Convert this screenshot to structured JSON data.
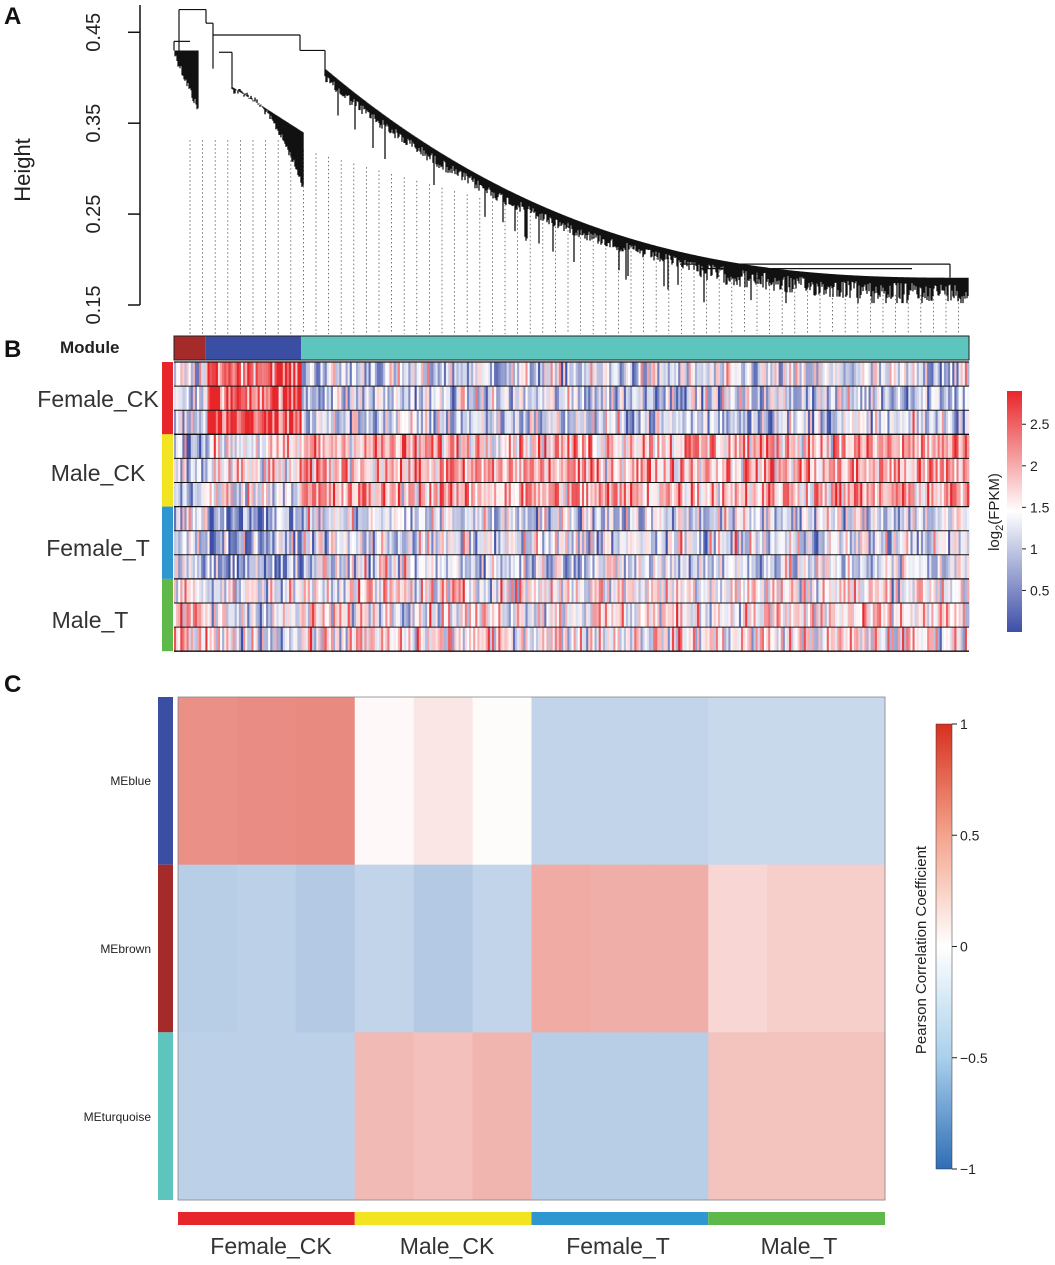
{
  "panels": {
    "a": "A",
    "b": "B",
    "c": "C"
  },
  "colors": {
    "brown": "#a52a2a",
    "blue": "#3a4fa3",
    "turquoise": "#5ec4be",
    "female_ck": "#e6262a",
    "male_ck": "#f2e421",
    "female_t": "#2e97cf",
    "male_t": "#5fb84a",
    "heat_low": "#3d4fa7",
    "heat_mid": "#ffffff",
    "heat_high": "#e8262a",
    "corr_low": "#2f6db5",
    "corr_high": "#d7301f"
  },
  "chart_data": [
    {
      "type": "dendrogram",
      "panel": "A",
      "ylabel": "Height",
      "ylim": [
        0.15,
        0.48
      ],
      "yticks": [
        "0.15",
        "0.25",
        "0.35",
        "0.45"
      ],
      "ytick_values": [
        0.15,
        0.25,
        0.35,
        0.45
      ],
      "module_label": "Module",
      "modules": [
        {
          "name": "brown",
          "color": "#a52a2a",
          "fraction": 0.04
        },
        {
          "name": "blue",
          "color": "#3a4fa3",
          "fraction": 0.12
        },
        {
          "name": "turquoise",
          "color": "#5ec4be",
          "fraction": 0.84
        }
      ]
    },
    {
      "type": "heatmap",
      "panel": "B",
      "groups": [
        "Female_CK",
        "Male_CK",
        "Female_T",
        "Male_T"
      ],
      "group_colors": [
        "#e6262a",
        "#f2e421",
        "#2e97cf",
        "#5fb84a"
      ],
      "replicates_per_group": 3,
      "colorbar_title": "log2(FPKM)",
      "colorbar_title_main": "log",
      "colorbar_title_sub": "2",
      "colorbar_title_rest": "(FPKM)",
      "colorbar_ticks": [
        "0.5",
        "1",
        "1.5",
        "2",
        "2.5"
      ],
      "colorbar_tick_values": [
        0.5,
        1.0,
        1.5,
        2.0,
        2.5
      ],
      "colorbar_range": [
        0.0,
        2.9
      ],
      "module_mean_levels": {
        "Female_CK": {
          "brown": 1.2,
          "blue": 2.6,
          "turquoise": 1.1
        },
        "Male_CK": {
          "brown": 1.0,
          "blue": 1.5,
          "turquoise": 2.0
        },
        "Female_T": {
          "brown": 1.1,
          "blue": 0.8,
          "turquoise": 1.2
        },
        "Male_T": {
          "brown": 1.7,
          "blue": 1.3,
          "turquoise": 1.6
        }
      }
    },
    {
      "type": "heatmap",
      "panel": "C",
      "rows": [
        "MEblue",
        "MEbrown",
        "MEturquoise"
      ],
      "row_colors": [
        "#3a4fa3",
        "#a52a2a",
        "#5ec4be"
      ],
      "groups": [
        "Female_CK",
        "Male_CK",
        "Female_T",
        "Male_T"
      ],
      "group_colors": [
        "#e6262a",
        "#f2e421",
        "#2e97cf",
        "#5fb84a"
      ],
      "columns_per_group": 3,
      "values": [
        [
          0.58,
          0.6,
          0.62,
          0.02,
          0.1,
          0.01,
          -0.25,
          -0.25,
          -0.25,
          -0.22,
          -0.22,
          -0.22
        ],
        [
          -0.3,
          -0.28,
          -0.32,
          -0.25,
          -0.32,
          -0.25,
          0.42,
          0.4,
          0.4,
          0.18,
          0.22,
          0.22
        ],
        [
          -0.28,
          -0.28,
          -0.28,
          0.33,
          0.3,
          0.36,
          -0.3,
          -0.3,
          -0.3,
          0.28,
          0.28,
          0.28
        ]
      ],
      "colorbar_title": "Pearson Correlation Coefficient",
      "colorbar_ticks": [
        "−1",
        "−0.5",
        "0",
        "0.5",
        "1"
      ],
      "colorbar_tick_values": [
        -1,
        -0.5,
        0,
        0.5,
        1
      ],
      "colorbar_range": [
        -1,
        1
      ]
    }
  ]
}
